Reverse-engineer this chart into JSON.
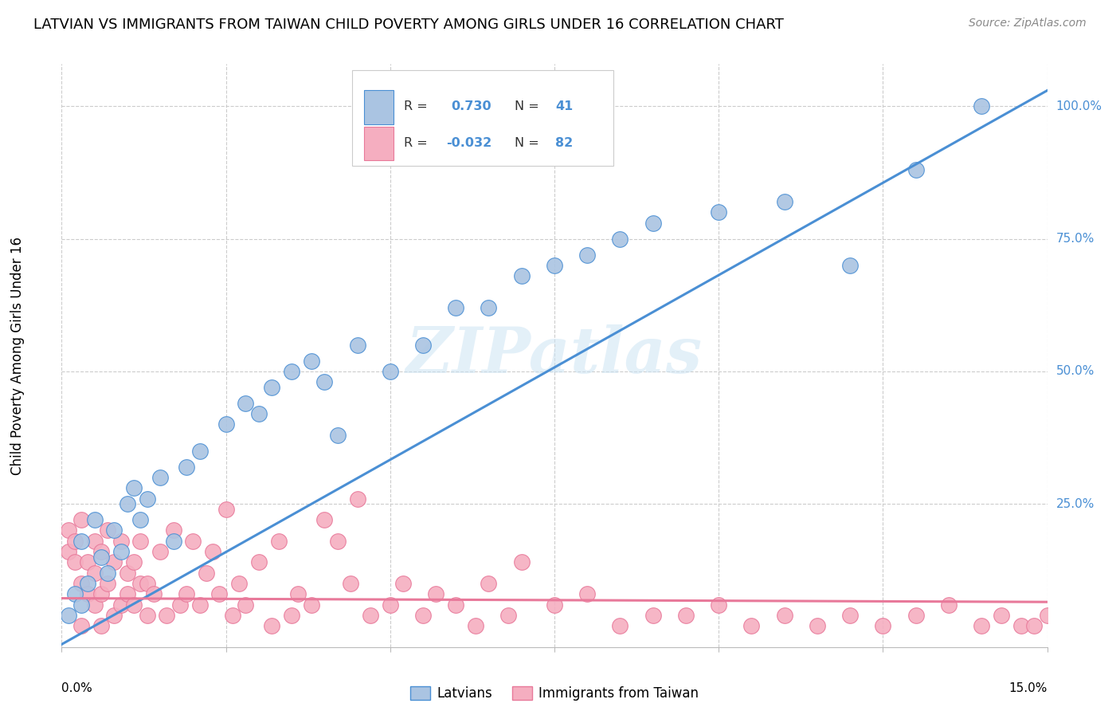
{
  "title": "LATVIAN VS IMMIGRANTS FROM TAIWAN CHILD POVERTY AMONG GIRLS UNDER 16 CORRELATION CHART",
  "source": "Source: ZipAtlas.com",
  "ylabel": "Child Poverty Among Girls Under 16",
  "xmin": 0.0,
  "xmax": 0.15,
  "ymin": -0.02,
  "ymax": 1.08,
  "color_latvian": "#aac4e2",
  "color_taiwan": "#f5aec0",
  "line_color_latvian": "#4a8fd4",
  "line_color_taiwan": "#e8799a",
  "watermark": "ZIPatlas",
  "lat_line_x0": 0.0,
  "lat_line_y0": -0.015,
  "lat_line_x1": 0.15,
  "lat_line_y1": 1.03,
  "tai_line_x0": 0.0,
  "tai_line_y0": 0.072,
  "tai_line_x1": 0.15,
  "tai_line_y1": 0.065,
  "latvian_x": [
    0.001,
    0.002,
    0.003,
    0.003,
    0.004,
    0.005,
    0.006,
    0.007,
    0.008,
    0.009,
    0.01,
    0.011,
    0.012,
    0.013,
    0.015,
    0.017,
    0.019,
    0.021,
    0.025,
    0.028,
    0.03,
    0.032,
    0.035,
    0.038,
    0.04,
    0.042,
    0.045,
    0.05,
    0.055,
    0.06,
    0.065,
    0.07,
    0.075,
    0.08,
    0.085,
    0.09,
    0.1,
    0.11,
    0.12,
    0.13,
    0.14
  ],
  "latvian_y": [
    0.04,
    0.08,
    0.18,
    0.06,
    0.1,
    0.22,
    0.15,
    0.12,
    0.2,
    0.16,
    0.25,
    0.28,
    0.22,
    0.26,
    0.3,
    0.18,
    0.32,
    0.35,
    0.4,
    0.44,
    0.42,
    0.47,
    0.5,
    0.52,
    0.48,
    0.38,
    0.55,
    0.5,
    0.55,
    0.62,
    0.62,
    0.68,
    0.7,
    0.72,
    0.75,
    0.78,
    0.8,
    0.82,
    0.7,
    0.88,
    1.0
  ],
  "taiwan_x": [
    0.001,
    0.001,
    0.002,
    0.002,
    0.003,
    0.003,
    0.004,
    0.004,
    0.005,
    0.005,
    0.005,
    0.006,
    0.006,
    0.007,
    0.007,
    0.008,
    0.008,
    0.009,
    0.009,
    0.01,
    0.01,
    0.011,
    0.011,
    0.012,
    0.012,
    0.013,
    0.013,
    0.014,
    0.015,
    0.016,
    0.017,
    0.018,
    0.019,
    0.02,
    0.021,
    0.022,
    0.023,
    0.024,
    0.025,
    0.026,
    0.027,
    0.028,
    0.03,
    0.032,
    0.033,
    0.035,
    0.036,
    0.038,
    0.04,
    0.042,
    0.044,
    0.045,
    0.047,
    0.05,
    0.052,
    0.055,
    0.057,
    0.06,
    0.063,
    0.065,
    0.068,
    0.07,
    0.075,
    0.08,
    0.085,
    0.09,
    0.095,
    0.1,
    0.105,
    0.11,
    0.115,
    0.12,
    0.125,
    0.13,
    0.135,
    0.14,
    0.143,
    0.146,
    0.148,
    0.15,
    0.003,
    0.006
  ],
  "taiwan_y": [
    0.2,
    0.16,
    0.14,
    0.18,
    0.1,
    0.22,
    0.08,
    0.14,
    0.06,
    0.18,
    0.12,
    0.16,
    0.08,
    0.1,
    0.2,
    0.04,
    0.14,
    0.18,
    0.06,
    0.08,
    0.12,
    0.14,
    0.06,
    0.1,
    0.18,
    0.04,
    0.1,
    0.08,
    0.16,
    0.04,
    0.2,
    0.06,
    0.08,
    0.18,
    0.06,
    0.12,
    0.16,
    0.08,
    0.24,
    0.04,
    0.1,
    0.06,
    0.14,
    0.02,
    0.18,
    0.04,
    0.08,
    0.06,
    0.22,
    0.18,
    0.1,
    0.26,
    0.04,
    0.06,
    0.1,
    0.04,
    0.08,
    0.06,
    0.02,
    0.1,
    0.04,
    0.14,
    0.06,
    0.08,
    0.02,
    0.04,
    0.04,
    0.06,
    0.02,
    0.04,
    0.02,
    0.04,
    0.02,
    0.04,
    0.06,
    0.02,
    0.04,
    0.02,
    0.02,
    0.04,
    0.02,
    0.02
  ]
}
